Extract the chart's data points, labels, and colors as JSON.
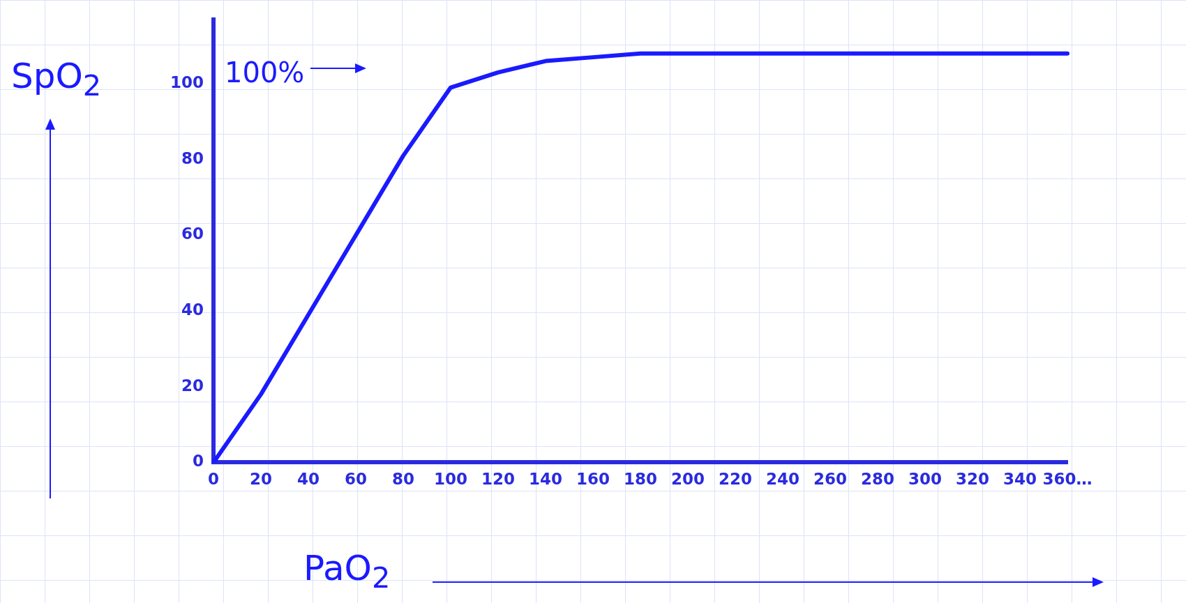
{
  "chart_data": {
    "type": "line",
    "xlabel": "PaO$_{2}$",
    "ylabel": "SpO$_{2}$",
    "categories": [
      "0",
      "20",
      "40",
      "60",
      "80",
      "100",
      "120",
      "140",
      "160",
      "180",
      "200",
      "220",
      "240",
      "260",
      "280",
      "300",
      "320",
      "340",
      "360…"
    ],
    "series": [
      {
        "color": "#1a1aff",
        "values": [
          0,
          18,
          39,
          60,
          81,
          99,
          103,
          106,
          107,
          108,
          108,
          108,
          108,
          108,
          108,
          108,
          108,
          108,
          108
        ]
      }
    ],
    "ylim": [
      0,
      117
    ],
    "yticks": [
      0,
      20,
      40,
      60,
      80,
      100
    ],
    "grid": false,
    "legend": false,
    "marker": "none",
    "line_style": "solid",
    "annotations": [
      "100%"
    ]
  }
}
